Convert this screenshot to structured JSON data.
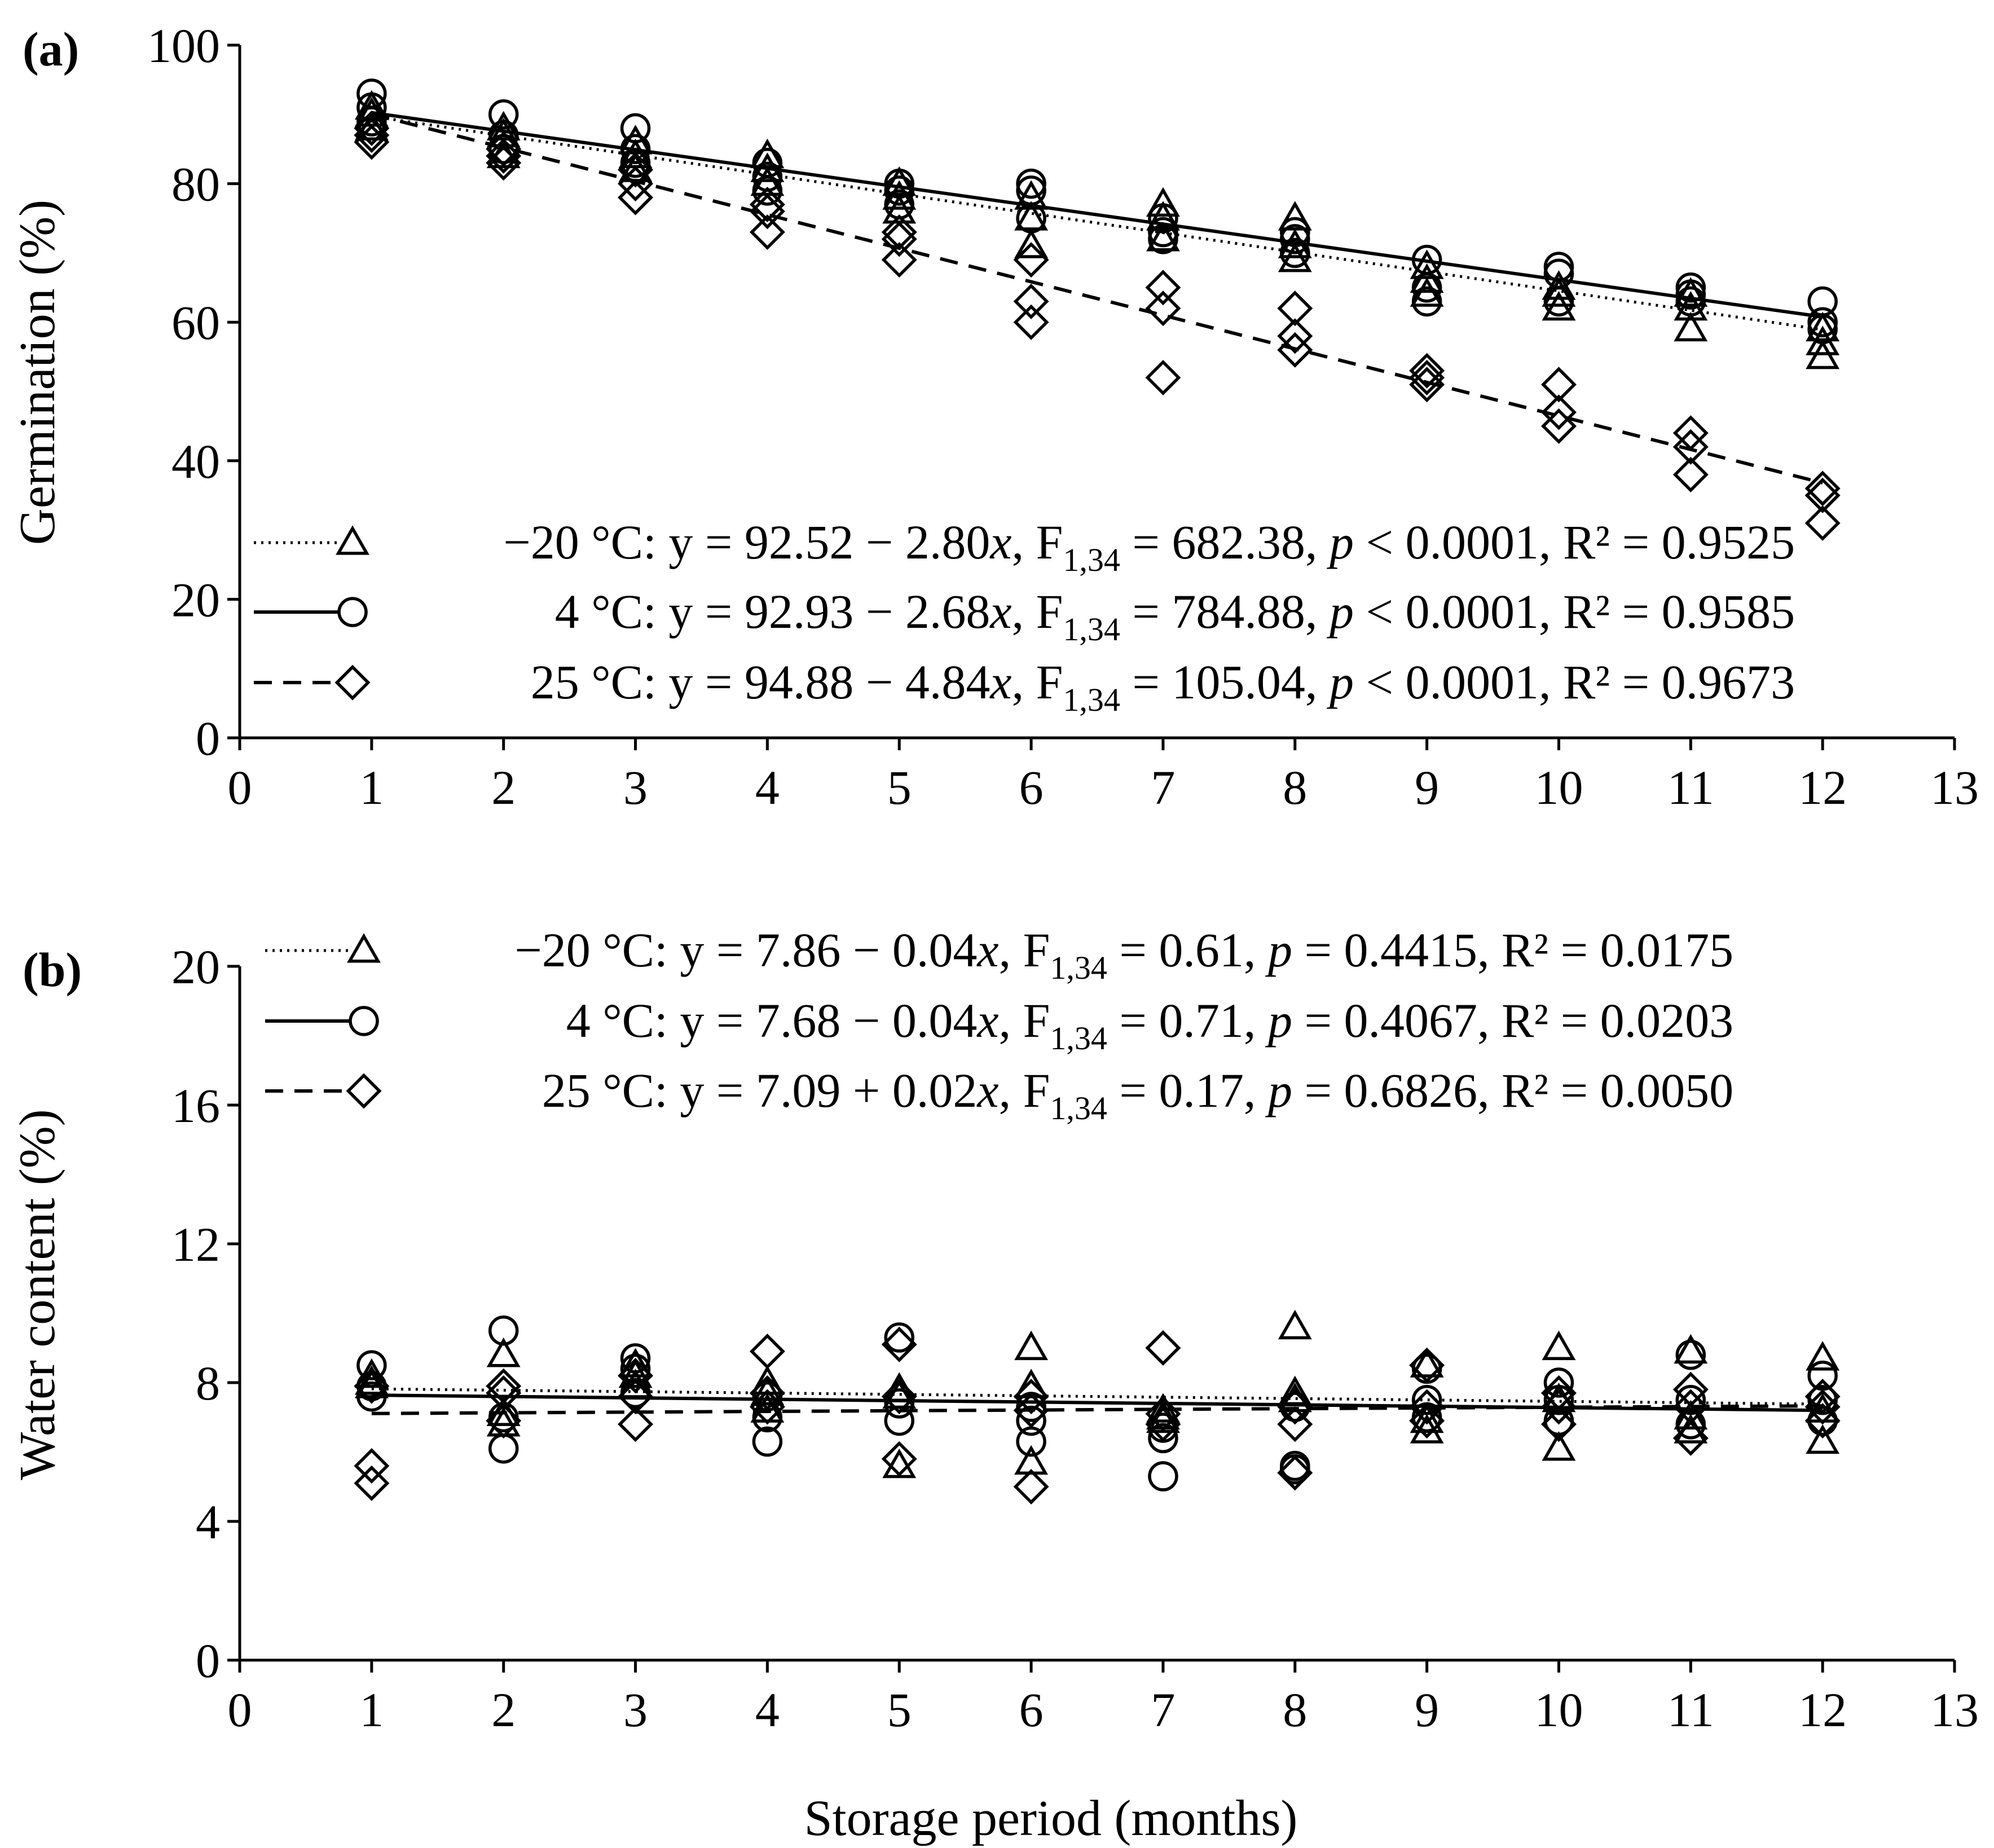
{
  "chart_data": [
    {
      "panel_label": "(a)",
      "type": "scatter",
      "xlabel": "",
      "ylabel": "Germination (%)",
      "xlim": [
        0,
        13
      ],
      "ylim": [
        0,
        100
      ],
      "xticks": [
        "0",
        "1",
        "2",
        "3",
        "4",
        "5",
        "6",
        "7",
        "8",
        "9",
        "10",
        "11",
        "12",
        "13"
      ],
      "yticks": [
        "0",
        "20",
        "40",
        "60",
        "80",
        "100"
      ],
      "series": [
        {
          "name": "−20 °C",
          "marker": "triangle",
          "line": "dotted",
          "fit": {
            "intercept": 92.52,
            "slope": -2.8
          },
          "legend": {
            "label": "−20 °C",
            "pre": ": y = 92.52 − 2.80",
            "x": "x",
            "mid": ", F",
            "sub": "1,34",
            "post1": " = 682.38, ",
            "p": "p",
            "post2": " < 0.0001, R² = 0.9525"
          },
          "points": [
            [
              1,
              88
            ],
            [
              1,
              90
            ],
            [
              1,
              91
            ],
            [
              2,
              84
            ],
            [
              2,
              87
            ],
            [
              2,
              88
            ],
            [
              3,
              82
            ],
            [
              3,
              84
            ],
            [
              3,
              86
            ],
            [
              4,
              80
            ],
            [
              4,
              82
            ],
            [
              4,
              84
            ],
            [
              5,
              76
            ],
            [
              5,
              78
            ],
            [
              5,
              80
            ],
            [
              6,
              71
            ],
            [
              6,
              75
            ],
            [
              6,
              78
            ],
            [
              7,
              72
            ],
            [
              7,
              75
            ],
            [
              7,
              77
            ],
            [
              8,
              69
            ],
            [
              8,
              71
            ],
            [
              8,
              75
            ],
            [
              9,
              64
            ],
            [
              9,
              66
            ],
            [
              9,
              68
            ],
            [
              10,
              62
            ],
            [
              10,
              64
            ],
            [
              10,
              65
            ],
            [
              11,
              59
            ],
            [
              11,
              62
            ],
            [
              11,
              64
            ],
            [
              12,
              55
            ],
            [
              12,
              57
            ],
            [
              12,
              59
            ]
          ]
        },
        {
          "name": "4 °C",
          "marker": "circle",
          "line": "solid",
          "fit": {
            "intercept": 92.93,
            "slope": -2.68
          },
          "legend": {
            "label": "4 °C",
            "pre": ": y = 92.93 − 2.68",
            "x": "x",
            "mid": ", F",
            "sub": "1,34",
            "post1": " = 784.88, ",
            "p": "p",
            "post2": " < 0.0001, R² = 0.9585"
          },
          "points": [
            [
              1,
              89
            ],
            [
              1,
              91
            ],
            [
              1,
              93
            ],
            [
              2,
              85
            ],
            [
              2,
              87
            ],
            [
              2,
              90
            ],
            [
              3,
              83
            ],
            [
              3,
              85
            ],
            [
              3,
              88
            ],
            [
              4,
              79
            ],
            [
              4,
              81
            ],
            [
              4,
              83
            ],
            [
              5,
              77
            ],
            [
              5,
              79
            ],
            [
              5,
              80
            ],
            [
              6,
              75
            ],
            [
              6,
              79
            ],
            [
              6,
              80
            ],
            [
              7,
              72
            ],
            [
              7,
              73
            ],
            [
              7,
              75
            ],
            [
              8,
              70
            ],
            [
              8,
              72
            ],
            [
              8,
              73
            ],
            [
              9,
              63
            ],
            [
              9,
              65
            ],
            [
              9,
              69
            ],
            [
              10,
              63
            ],
            [
              10,
              67
            ],
            [
              10,
              68
            ],
            [
              11,
              63
            ],
            [
              11,
              64
            ],
            [
              11,
              65
            ],
            [
              12,
              59
            ],
            [
              12,
              60
            ],
            [
              12,
              63
            ]
          ]
        },
        {
          "name": "25 °C",
          "marker": "diamond",
          "line": "dashed",
          "fit": {
            "intercept": 94.88,
            "slope": -4.84
          },
          "legend": {
            "label": "25 °C",
            "pre": ": y = 94.88 − 4.84",
            "x": "x",
            "mid": ", F",
            "sub": "1,34",
            "post1": " = 105.04, ",
            "p": "p",
            "post2": " < 0.0001, R² = 0.9673"
          },
          "points": [
            [
              1,
              86
            ],
            [
              1,
              87
            ],
            [
              1,
              88
            ],
            [
              2,
              83
            ],
            [
              2,
              84
            ],
            [
              2,
              85
            ],
            [
              3,
              78
            ],
            [
              3,
              80
            ],
            [
              3,
              82
            ],
            [
              4,
              73
            ],
            [
              4,
              76
            ],
            [
              4,
              77
            ],
            [
              5,
              69
            ],
            [
              5,
              72
            ],
            [
              5,
              73
            ],
            [
              6,
              60
            ],
            [
              6,
              63
            ],
            [
              6,
              69
            ],
            [
              7,
              52
            ],
            [
              7,
              62
            ],
            [
              7,
              65
            ],
            [
              8,
              56
            ],
            [
              8,
              58
            ],
            [
              8,
              62
            ],
            [
              9,
              51
            ],
            [
              9,
              52
            ],
            [
              9,
              53
            ],
            [
              10,
              45
            ],
            [
              10,
              47
            ],
            [
              10,
              51
            ],
            [
              11,
              38
            ],
            [
              11,
              42
            ],
            [
              11,
              44
            ],
            [
              12,
              31
            ],
            [
              12,
              35
            ],
            [
              12,
              36
            ]
          ]
        }
      ]
    },
    {
      "panel_label": "(b)",
      "type": "scatter",
      "xlabel": "Storage period (months)",
      "ylabel": "Water content (%)",
      "xlim": [
        0,
        13
      ],
      "ylim": [
        0,
        20
      ],
      "xticks": [
        "0",
        "1",
        "2",
        "3",
        "4",
        "5",
        "6",
        "7",
        "8",
        "9",
        "10",
        "11",
        "12",
        "13"
      ],
      "yticks": [
        "0",
        "4",
        "8",
        "12",
        "16",
        "20"
      ],
      "series": [
        {
          "name": "−20 °C",
          "marker": "triangle",
          "line": "dotted",
          "fit": {
            "intercept": 7.86,
            "slope": -0.04
          },
          "legend": {
            "label": "−20 °C",
            "pre": ": y = 7.86 − 0.04",
            "x": "x",
            "mid": ",  F",
            "sub": "1,34",
            "post1": " = 0.61, ",
            "p": "p",
            "post2": " = 0.4415, R² = 0.0175"
          },
          "points": [
            [
              1,
              7.9
            ],
            [
              1,
              8.0
            ],
            [
              1,
              8.2
            ],
            [
              2,
              6.8
            ],
            [
              2,
              7.1
            ],
            [
              2,
              8.8
            ],
            [
              3,
              7.9
            ],
            [
              3,
              8.2
            ],
            [
              3,
              8.5
            ],
            [
              4,
              7.2
            ],
            [
              4,
              7.7
            ],
            [
              4,
              8.0
            ],
            [
              5,
              5.6
            ],
            [
              5,
              7.6
            ],
            [
              5,
              7.8
            ],
            [
              6,
              5.7
            ],
            [
              6,
              7.9
            ],
            [
              6,
              9.0
            ],
            [
              7,
              6.9
            ],
            [
              7,
              7.0
            ],
            [
              7,
              7.2
            ],
            [
              8,
              7.5
            ],
            [
              8,
              7.7
            ],
            [
              8,
              9.6
            ],
            [
              9,
              6.6
            ],
            [
              9,
              6.9
            ],
            [
              9,
              8.5
            ],
            [
              10,
              6.1
            ],
            [
              10,
              7.5
            ],
            [
              10,
              9.0
            ],
            [
              11,
              6.6
            ],
            [
              11,
              7.0
            ],
            [
              11,
              8.9
            ],
            [
              12,
              6.3
            ],
            [
              12,
              7.2
            ],
            [
              12,
              8.7
            ]
          ]
        },
        {
          "name": "4 °C",
          "marker": "circle",
          "line": "solid",
          "fit": {
            "intercept": 7.68,
            "slope": -0.04
          },
          "legend": {
            "label": "4 °C",
            "pre": ": y = 7.68 − 0.04",
            "x": "x",
            "mid": ",  F",
            "sub": "1,34",
            "post1": " = 0.71, ",
            "p": "p",
            "post2": " = 0.4067, R² = 0.0203"
          },
          "points": [
            [
              1,
              7.6
            ],
            [
              1,
              7.9
            ],
            [
              1,
              8.5
            ],
            [
              2,
              6.1
            ],
            [
              2,
              7.0
            ],
            [
              2,
              9.5
            ],
            [
              3,
              7.7
            ],
            [
              3,
              8.4
            ],
            [
              3,
              8.7
            ],
            [
              4,
              6.3
            ],
            [
              4,
              7.0
            ],
            [
              4,
              7.6
            ],
            [
              5,
              6.9
            ],
            [
              5,
              7.4
            ],
            [
              5,
              9.3
            ],
            [
              6,
              6.3
            ],
            [
              6,
              6.9
            ],
            [
              6,
              7.3
            ],
            [
              7,
              5.3
            ],
            [
              7,
              6.4
            ],
            [
              7,
              6.7
            ],
            [
              8,
              5.5
            ],
            [
              8,
              5.6
            ],
            [
              8,
              7.3
            ],
            [
              9,
              7.0
            ],
            [
              9,
              7.5
            ],
            [
              9,
              8.4
            ],
            [
              10,
              6.9
            ],
            [
              10,
              7.5
            ],
            [
              10,
              8.0
            ],
            [
              11,
              6.8
            ],
            [
              11,
              7.5
            ],
            [
              11,
              8.8
            ],
            [
              12,
              6.9
            ],
            [
              12,
              7.5
            ],
            [
              12,
              8.2
            ]
          ]
        },
        {
          "name": "25 °C",
          "marker": "diamond",
          "line": "dashed",
          "fit": {
            "intercept": 7.09,
            "slope": 0.02
          },
          "legend": {
            "label": "25 °C",
            "pre": ": y = 7.09 +  0.02",
            "x": "x",
            "mid": ", F",
            "sub": "1,34",
            "post1": " = 0.17, ",
            "p": "p",
            "post2": " = 0.6826, R² = 0.0050"
          },
          "points": [
            [
              1,
              5.1
            ],
            [
              1,
              5.6
            ],
            [
              1,
              7.9
            ],
            [
              2,
              6.9
            ],
            [
              2,
              7.7
            ],
            [
              2,
              7.9
            ],
            [
              3,
              6.8
            ],
            [
              3,
              7.6
            ],
            [
              3,
              8.2
            ],
            [
              4,
              7.3
            ],
            [
              4,
              7.7
            ],
            [
              4,
              8.9
            ],
            [
              5,
              5.8
            ],
            [
              5,
              7.6
            ],
            [
              5,
              9.1
            ],
            [
              6,
              5.0
            ],
            [
              6,
              7.2
            ],
            [
              6,
              7.6
            ],
            [
              7,
              6.8
            ],
            [
              7,
              7.1
            ],
            [
              7,
              9.0
            ],
            [
              8,
              5.4
            ],
            [
              8,
              6.8
            ],
            [
              8,
              7.3
            ],
            [
              9,
              6.9
            ],
            [
              9,
              7.3
            ],
            [
              9,
              8.5
            ],
            [
              10,
              6.8
            ],
            [
              10,
              7.3
            ],
            [
              10,
              7.7
            ],
            [
              11,
              6.4
            ],
            [
              11,
              7.3
            ],
            [
              11,
              7.8
            ],
            [
              12,
              6.9
            ],
            [
              12,
              7.3
            ],
            [
              12,
              7.6
            ]
          ]
        }
      ]
    }
  ]
}
